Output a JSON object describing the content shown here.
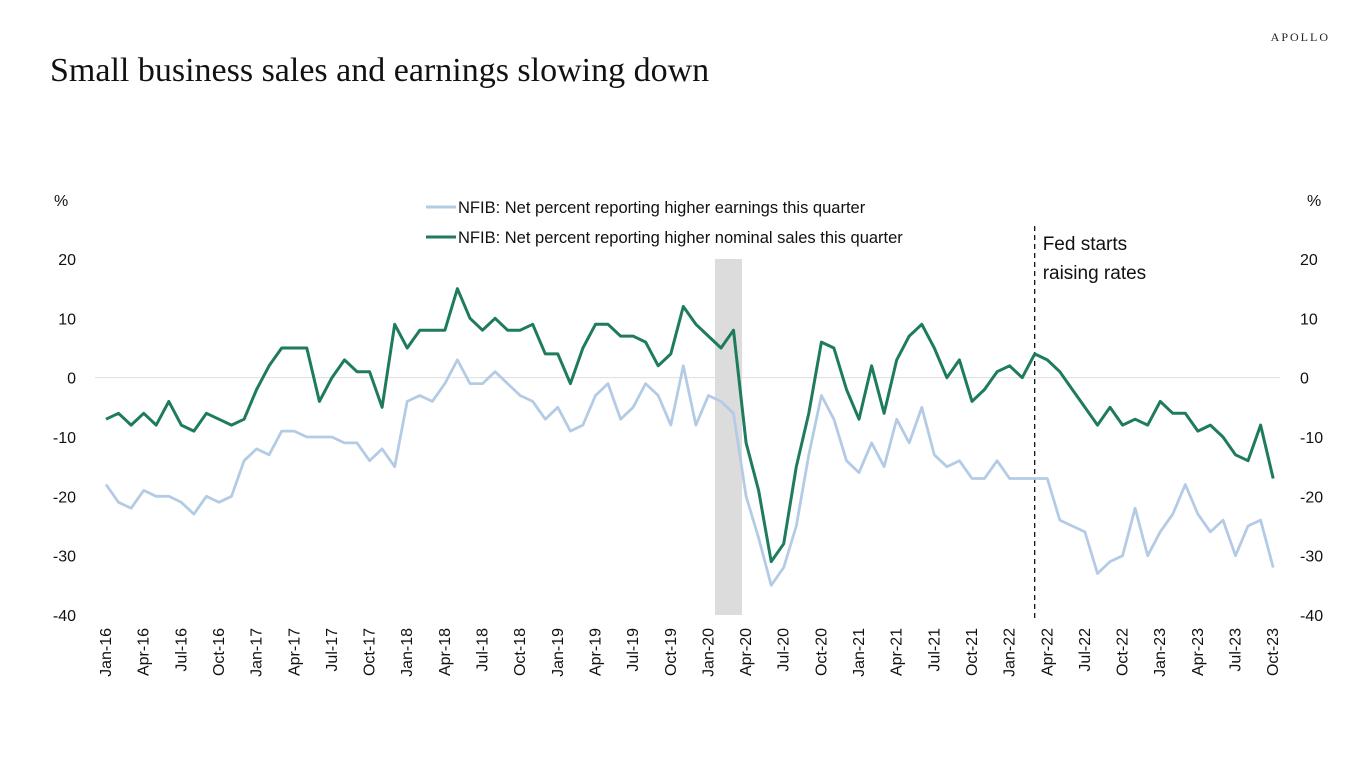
{
  "brand": "APOLLO",
  "title": "Small business sales and earnings slowing down",
  "chart_data": {
    "type": "line",
    "title": "Small business sales and earnings slowing down",
    "ylabel_left": "%",
    "ylabel_right": "%",
    "ylim": [
      -40,
      20
    ],
    "yticks": [
      20,
      10,
      0,
      -10,
      -20,
      -30,
      -40
    ],
    "start": "Jan-16",
    "xtick_labels": [
      "Jan-16",
      "Apr-16",
      "Jul-16",
      "Oct-16",
      "Jan-17",
      "Apr-17",
      "Jul-17",
      "Oct-17",
      "Jan-18",
      "Apr-18",
      "Jul-18",
      "Oct-18",
      "Jan-19",
      "Apr-19",
      "Jul-19",
      "Oct-19",
      "Jan-20",
      "Apr-20",
      "Jul-20",
      "Oct-20",
      "Jan-21",
      "Apr-21",
      "Jul-21",
      "Oct-21",
      "Jan-22",
      "Apr-22",
      "Jul-22",
      "Oct-22",
      "Jan-23",
      "Apr-23",
      "Jul-23",
      "Oct-23"
    ],
    "series": [
      {
        "name": "NFIB: Net percent reporting higher earnings this quarter",
        "color": "#b4cbe6",
        "values": [
          -18,
          -21,
          -22,
          -19,
          -20,
          -20,
          -21,
          -23,
          -20,
          -21,
          -20,
          -14,
          -12,
          -13,
          -9,
          -9,
          -10,
          -10,
          -10,
          -11,
          -11,
          -14,
          -12,
          -15,
          -4,
          -3,
          -4,
          -1,
          3,
          -1,
          -1,
          1,
          -1,
          -3,
          -4,
          -7,
          -5,
          -9,
          -8,
          -3,
          -1,
          -7,
          -5,
          -1,
          -3,
          -8,
          2,
          -8,
          -3,
          -4,
          -6,
          -20,
          -27,
          -35,
          -32,
          -25,
          -13,
          -3,
          -7,
          -14,
          -16,
          -11,
          -15,
          -7,
          -11,
          -5,
          -13,
          -15,
          -14,
          -17,
          -17,
          -14,
          -17,
          -17,
          -17,
          -17,
          -24,
          -25,
          -26,
          -33,
          -31,
          -30,
          -22,
          -30,
          -26,
          -23,
          -18,
          -23,
          -26,
          -24,
          -30,
          -25,
          -24,
          -32
        ]
      },
      {
        "name": "NFIB: Net percent reporting higher nominal sales this quarter",
        "color": "#1e7b5e",
        "values": [
          -7,
          -6,
          -8,
          -6,
          -8,
          -4,
          -8,
          -9,
          -6,
          -7,
          -8,
          -7,
          -2,
          2,
          5,
          5,
          5,
          -4,
          0,
          3,
          1,
          1,
          -5,
          9,
          5,
          8,
          8,
          8,
          15,
          10,
          8,
          10,
          8,
          8,
          9,
          4,
          4,
          -1,
          5,
          9,
          9,
          7,
          7,
          6,
          2,
          4,
          12,
          9,
          7,
          5,
          8,
          -11,
          -19,
          -31,
          -28,
          -15,
          -6,
          6,
          5,
          -2,
          -7,
          2,
          -6,
          3,
          7,
          9,
          5,
          0,
          3,
          -4,
          -2,
          1,
          2,
          0,
          4,
          3,
          1,
          -2,
          -5,
          -8,
          -5,
          -8,
          -7,
          -8,
          -4,
          -6,
          -6,
          -9,
          -8,
          -10,
          -13,
          -14,
          -8,
          -17
        ]
      }
    ],
    "recession_shading": {
      "from_index": 49,
      "to_index": 51
    },
    "annotation": {
      "index": 74,
      "lines": [
        "Fed starts",
        "raising rates"
      ]
    },
    "legend": "top-center",
    "grid": "zero line only"
  }
}
